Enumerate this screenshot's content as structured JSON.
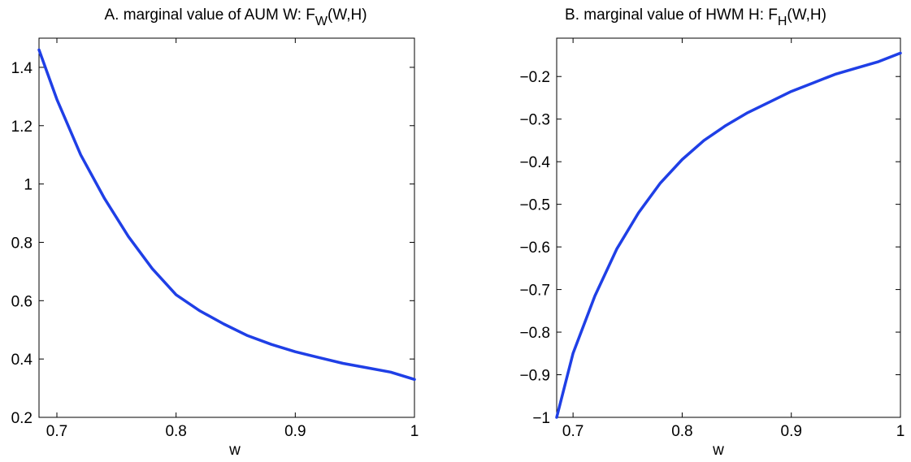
{
  "chart_data": [
    {
      "type": "line",
      "title_main": "A. marginal value of AUM W:  F",
      "title_sub": "W",
      "title_tail": "(W,H)",
      "xlabel": "w",
      "ylabel": "",
      "xlim": [
        0.685,
        1.0
      ],
      "ylim": [
        0.2,
        1.5
      ],
      "xticks": [
        0.7,
        0.8,
        0.9,
        1.0
      ],
      "xtick_labels": [
        "0.7",
        "0.8",
        "0.9",
        "1"
      ],
      "yticks": [
        0.2,
        0.4,
        0.6,
        0.8,
        1.0,
        1.2,
        1.4
      ],
      "ytick_labels": [
        "0.2",
        "0.4",
        "0.6",
        "0.8",
        "1",
        "1.2",
        "1.4"
      ],
      "grid": false,
      "line_color": "#1f3fe6",
      "series": [
        {
          "x": [
            0.685,
            0.7,
            0.72,
            0.74,
            0.76,
            0.78,
            0.8,
            0.82,
            0.84,
            0.86,
            0.88,
            0.9,
            0.92,
            0.94,
            0.96,
            0.98,
            1.0
          ],
          "y": [
            1.46,
            1.29,
            1.1,
            0.95,
            0.82,
            0.71,
            0.62,
            0.565,
            0.52,
            0.48,
            0.45,
            0.425,
            0.405,
            0.385,
            0.37,
            0.355,
            0.33
          ]
        }
      ]
    },
    {
      "type": "line",
      "title_main": "B. marginal value of HWM H:  F",
      "title_sub": "H",
      "title_tail": "(W,H)",
      "xlabel": "w",
      "ylabel": "",
      "xlim": [
        0.685,
        1.0
      ],
      "ylim": [
        -1.0,
        -0.11
      ],
      "xticks": [
        0.7,
        0.8,
        0.9,
        1.0
      ],
      "xtick_labels": [
        "0.7",
        "0.8",
        "0.9",
        "1"
      ],
      "yticks": [
        -1.0,
        -0.9,
        -0.8,
        -0.7,
        -0.6,
        -0.5,
        -0.4,
        -0.3,
        -0.2
      ],
      "ytick_labels": [
        "−1",
        "−0.9",
        "−0.8",
        "−0.7",
        "−0.6",
        "−0.5",
        "−0.4",
        "−0.3",
        "−0.2"
      ],
      "grid": false,
      "line_color": "#1f3fe6",
      "series": [
        {
          "x": [
            0.685,
            0.7,
            0.72,
            0.74,
            0.76,
            0.78,
            0.8,
            0.82,
            0.84,
            0.86,
            0.88,
            0.9,
            0.92,
            0.94,
            0.96,
            0.98,
            1.0
          ],
          "y": [
            -1.0,
            -0.85,
            -0.715,
            -0.605,
            -0.52,
            -0.45,
            -0.395,
            -0.35,
            -0.315,
            -0.285,
            -0.26,
            -0.235,
            -0.215,
            -0.195,
            -0.18,
            -0.165,
            -0.145
          ]
        }
      ]
    }
  ]
}
